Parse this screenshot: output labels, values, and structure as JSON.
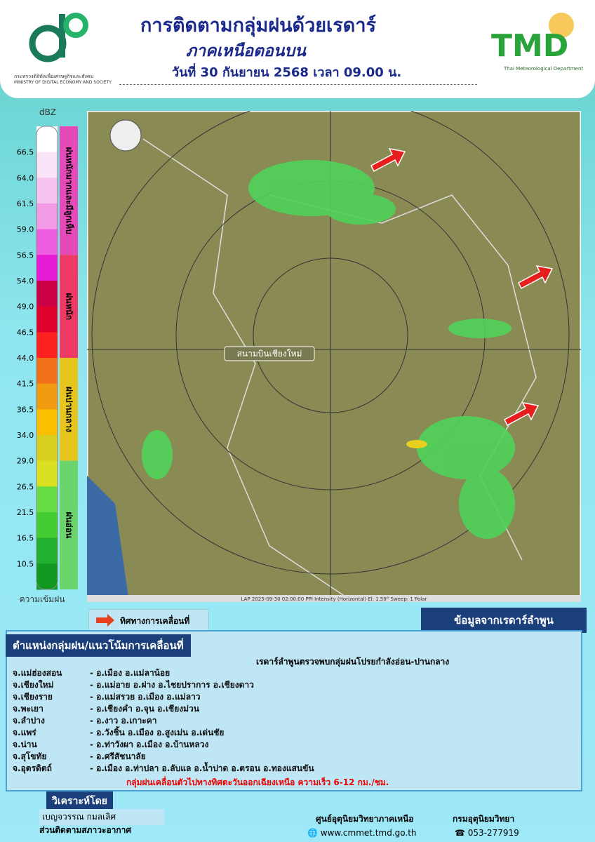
{
  "header": {
    "title": "การติดตามกลุ่มฝนด้วยเรดาร์",
    "subtitle": "ภาคเหนือตอนบน",
    "date": "วันที่ 30 กันยายน 2568 เวลา 09.00 น.",
    "ministry_th": "กระทรวงดิจิทัลเพื่อเศรษฐกิจและสังคม",
    "ministry_en": "MINISTRY OF DIGITAL ECONOMY AND SOCIETY",
    "tmd": "TMD",
    "tmd_en": "Thai Meteorological Department"
  },
  "legend": {
    "unit": "dBZ",
    "levels": [
      "66.5",
      "64.0",
      "61.5",
      "59.0",
      "56.5",
      "54.0",
      "49.0",
      "46.5",
      "44.0",
      "41.5",
      "36.5",
      "34.0",
      "29.0",
      "26.5",
      "21.5",
      "16.5",
      "10.5"
    ],
    "colors": [
      "#ffffff",
      "#fbe3f7",
      "#f7c4ef",
      "#f29ae6",
      "#ee5fe0",
      "#e61bd6",
      "#cc0044",
      "#e0002c",
      "#ff2020",
      "#f0701c",
      "#f29a10",
      "#f8c000",
      "#d8d020",
      "#d8e020",
      "#66dd44",
      "#44cc33",
      "#22b030",
      "#119922"
    ],
    "categories": [
      {
        "label": "ฝนหนักมากและมีลูกเห็บ",
        "color": "#e649b8"
      },
      {
        "label": "ฝนหนัก",
        "color": "#ef3a66"
      },
      {
        "label": "ฝนปานกลาง",
        "color": "#e6c61e"
      },
      {
        "label": "ฝนอ่อน",
        "color": "#6cd46c"
      }
    ],
    "caption": "ความเข้มฝน"
  },
  "map": {
    "airport": "สนามบินเชียงใหม่",
    "status": "LAP 2025-09-30 02:00:00 PPI Intensity (Horizontal)  El: 1.59°  Sweep: 1 Polar"
  },
  "direction_legend": "ทิศทางการเคลื่อนที่",
  "source": "ข้อมูลจากเรดาร์ลำพูน",
  "panel": {
    "title": "ตำแหน่งกลุ่มฝน/แนวโน้มการเคลื่อนที่",
    "summary": "เรดาร์ลำพูนตรวจพบกลุ่มฝนโปรยกำลังอ่อน-ปานกลาง",
    "rows": [
      [
        "จ.แม่ฮ่องสอน",
        "- อ.เมือง อ.แม่ลาน้อย"
      ],
      [
        "จ.เชียงใหม่",
        "- อ.แม่อาย อ.ฝาง อ.ไชยปราการ อ.เชียงดาว"
      ],
      [
        "จ.เชียงราย",
        "- อ.แม่สรวย อ.เมือง อ.แม่ลาว"
      ],
      [
        "จ.พะเยา",
        "- อ.เชียงคำ อ.จุน อ.เชียงม่วน"
      ],
      [
        "จ.ลำปาง",
        "- อ.งาว อ.เกาะคา"
      ],
      [
        "จ.แพร่",
        "- อ.วังชิ้น อ.เมือง อ.สูงเม่น อ.เด่นชัย"
      ],
      [
        "จ.น่าน",
        "- อ.ท่าวังผา อ.เมือง อ.บ้านหลวง"
      ],
      [
        "จ.สุโขทัย",
        "- อ.ศรีสัชนาลัย"
      ],
      [
        "จ.อุตรดิตถ์",
        "- อ.เมือง อ.ท่าปลา อ.ลับแล อ.น้ำปาด อ.ตรอน อ.ทองแสนขัน"
      ]
    ],
    "note": "กลุ่มฝนเคลื่อนตัวไปทางทิศตะวันออกเฉียงเหนือ ความเร็ว 6-12 กม./ชม."
  },
  "footer": {
    "analyzed_by": "วิเคราะห์โดย",
    "analyst": "เบญจวรรณ กมลเลิศ",
    "division": "ส่วนติดตามสภาวะอากาศ",
    "center": "ศูนย์อุตุนิยมวิทยาภาคเหนือ",
    "website": "www.cmmet.tmd.go.th",
    "department": "กรมอุตุนิยมวิทยา",
    "phone": "053-277919"
  }
}
